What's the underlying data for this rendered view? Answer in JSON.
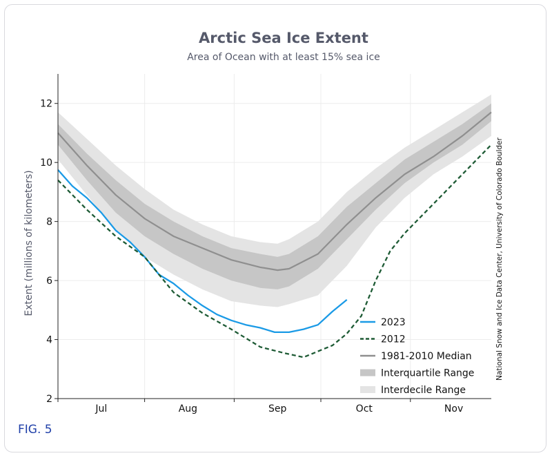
{
  "figure_label": "FIG. 5",
  "chart_data": {
    "type": "line",
    "title": "Arctic Sea Ice Extent",
    "subtitle": "Area of Ocean with at least 15% sea ice",
    "ylabel": "Extent (millions of kilometers)",
    "xlabel": "",
    "ylim": [
      2,
      13
    ],
    "yticks": [
      2,
      4,
      6,
      8,
      10,
      12
    ],
    "xlim": [
      0,
      150
    ],
    "months": [
      {
        "label": "Jul",
        "tick": 0,
        "center": 15
      },
      {
        "label": "Aug",
        "tick": 30,
        "center": 45
      },
      {
        "label": "Sep",
        "tick": 61,
        "center": 76
      },
      {
        "label": "Oct",
        "tick": 91,
        "center": 106
      },
      {
        "label": "Nov",
        "tick": 122,
        "center": 137
      }
    ],
    "grid": true,
    "legend_position": "lower-right",
    "credit": "National Snow and Ice Data Center, University of Colorado Boulder",
    "colors": {
      "series_2023": "#1a9ae6",
      "series_2012": "#1e5b35",
      "median": "#8f8f8f",
      "interquartile": "#c6c6c6",
      "interdecile": "#e4e4e4",
      "grid": "#ececec"
    },
    "x": [
      0,
      10,
      20,
      30,
      40,
      50,
      60,
      70,
      76,
      80,
      90,
      100,
      110,
      120,
      130,
      140,
      150
    ],
    "median_values": [
      11.0,
      9.9,
      8.9,
      8.1,
      7.5,
      7.1,
      6.7,
      6.45,
      6.35,
      6.4,
      6.9,
      7.9,
      8.8,
      9.6,
      10.2,
      10.9,
      11.7
    ],
    "interquartile_upper": [
      11.3,
      10.3,
      9.4,
      8.6,
      8.0,
      7.5,
      7.1,
      6.9,
      6.8,
      6.9,
      7.5,
      8.5,
      9.3,
      10.1,
      10.7,
      11.3,
      12.0
    ],
    "interquartile_lower": [
      10.6,
      9.4,
      8.3,
      7.5,
      6.9,
      6.4,
      6.0,
      5.75,
      5.7,
      5.8,
      6.4,
      7.4,
      8.4,
      9.3,
      10.0,
      10.6,
      11.4
    ],
    "interdecile_upper": [
      11.7,
      10.8,
      9.9,
      9.1,
      8.4,
      7.9,
      7.5,
      7.3,
      7.25,
      7.4,
      8.0,
      9.0,
      9.8,
      10.5,
      11.1,
      11.7,
      12.3
    ],
    "interdecile_lower": [
      10.1,
      8.9,
      7.7,
      6.8,
      6.2,
      5.7,
      5.3,
      5.15,
      5.1,
      5.2,
      5.5,
      6.5,
      7.8,
      8.8,
      9.6,
      10.2,
      10.9
    ],
    "series": [
      {
        "name": "2023",
        "style": "solid",
        "x": [
          0,
          5,
          10,
          15,
          20,
          25,
          30,
          35,
          40,
          45,
          50,
          55,
          60,
          65,
          70,
          75,
          80,
          85,
          90,
          95,
          100
        ],
        "values": [
          9.75,
          9.2,
          8.8,
          8.3,
          7.7,
          7.3,
          6.8,
          6.2,
          5.9,
          5.5,
          5.15,
          4.85,
          4.65,
          4.5,
          4.4,
          4.25,
          4.25,
          4.35,
          4.5,
          4.95,
          5.35
        ]
      },
      {
        "name": "2012",
        "style": "dashed",
        "x": [
          0,
          10,
          20,
          30,
          40,
          50,
          60,
          70,
          78,
          85,
          90,
          95,
          100,
          105,
          110,
          115,
          120,
          130,
          140,
          150
        ],
        "values": [
          9.4,
          8.4,
          7.5,
          6.8,
          5.6,
          4.9,
          4.35,
          3.75,
          3.55,
          3.4,
          3.6,
          3.8,
          4.2,
          4.8,
          6.0,
          7.0,
          7.6,
          8.6,
          9.6,
          10.6
        ]
      }
    ],
    "legend": [
      {
        "label": "2023",
        "kind": "series_2023"
      },
      {
        "label": "2012",
        "kind": "series_2012"
      },
      {
        "label": "1981-2010 Median",
        "kind": "median"
      },
      {
        "label": "Interquartile Range",
        "kind": "interquartile"
      },
      {
        "label": "Interdecile Range",
        "kind": "interdecile"
      }
    ]
  }
}
